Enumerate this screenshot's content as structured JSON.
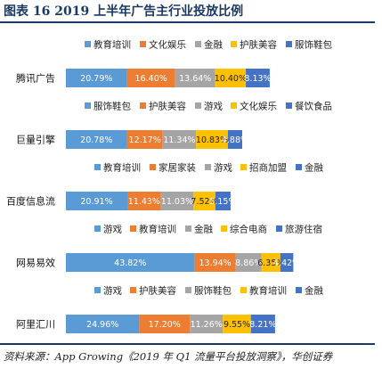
{
  "page": {
    "title": "图表 16 2019 上半年广告主行业投放比例",
    "source": "资料来源：App Growing《2019 年 Q1 流量平台投放洞察》，华创证券"
  },
  "palette": [
    "#5b9bd5",
    "#ed7d31",
    "#a5a5a5",
    "#ffc000",
    "#4472c4"
  ],
  "chart_data": [
    {
      "type": "bar",
      "orientation": "horizontal",
      "stacked": true,
      "categories": [
        "腾讯广告"
      ],
      "series": [
        {
          "name": "教育培训",
          "values": [
            20.79
          ]
        },
        {
          "name": "文化娱乐",
          "values": [
            16.4
          ]
        },
        {
          "name": "金融",
          "values": [
            13.64
          ]
        },
        {
          "name": "护肤美容",
          "values": [
            10.4
          ]
        },
        {
          "name": "服饰鞋包",
          "values": [
            8.13
          ]
        }
      ],
      "labels": [
        "20.79%",
        "16.40%",
        "13.64%",
        "10.40%",
        "8.13%"
      ],
      "legend": "top"
    },
    {
      "type": "bar",
      "orientation": "horizontal",
      "stacked": true,
      "categories": [
        "巨量引擎"
      ],
      "series": [
        {
          "name": "服饰鞋包",
          "values": [
            20.78
          ]
        },
        {
          "name": "护肤美容",
          "values": [
            12.17
          ]
        },
        {
          "name": "游戏",
          "values": [
            11.34
          ]
        },
        {
          "name": "文化娱乐",
          "values": [
            10.83
          ]
        },
        {
          "name": "餐饮食品",
          "values": [
            4.88
          ]
        }
      ],
      "labels": [
        "20.78%",
        "12.17%",
        "11.34%",
        "10.83%",
        "4.88%"
      ],
      "legend": "top"
    },
    {
      "type": "bar",
      "orientation": "horizontal",
      "stacked": true,
      "categories": [
        "百度信息流"
      ],
      "series": [
        {
          "name": "教育培训",
          "values": [
            20.91
          ]
        },
        {
          "name": "家居家装",
          "values": [
            11.43
          ]
        },
        {
          "name": "游戏",
          "values": [
            11.03
          ]
        },
        {
          "name": "招商加盟",
          "values": [
            7.52
          ]
        },
        {
          "name": "金融",
          "values": [
            5.15
          ]
        }
      ],
      "labels": [
        "20.91%",
        "11.43%",
        "11.03%",
        "7.52%",
        "5.15%"
      ],
      "legend": "top"
    },
    {
      "type": "bar",
      "orientation": "horizontal",
      "stacked": true,
      "categories": [
        "网易易效"
      ],
      "series": [
        {
          "name": "游戏",
          "values": [
            43.82
          ]
        },
        {
          "name": "教育培训",
          "values": [
            13.94
          ]
        },
        {
          "name": "金融",
          "values": [
            8.86
          ]
        },
        {
          "name": "综合电商",
          "values": [
            6.35
          ]
        },
        {
          "name": "旅游住宿",
          "values": [
            4.42
          ]
        }
      ],
      "labels": [
        "43.82%",
        "13.94%",
        "8.86%",
        "6.35%",
        "4.42%"
      ],
      "legend": "top"
    },
    {
      "type": "bar",
      "orientation": "horizontal",
      "stacked": true,
      "categories": [
        "阿里汇川"
      ],
      "series": [
        {
          "name": "游戏",
          "values": [
            24.96
          ]
        },
        {
          "name": "护肤美容",
          "values": [
            17.2
          ]
        },
        {
          "name": "服饰鞋包",
          "values": [
            11.26
          ]
        },
        {
          "name": "教育培训",
          "values": [
            9.55
          ]
        },
        {
          "name": "金融",
          "values": [
            8.21
          ]
        }
      ],
      "labels": [
        "24.96%",
        "17.20%",
        "11.26%",
        "9.55%",
        "8.21%"
      ],
      "legend": "top"
    }
  ]
}
